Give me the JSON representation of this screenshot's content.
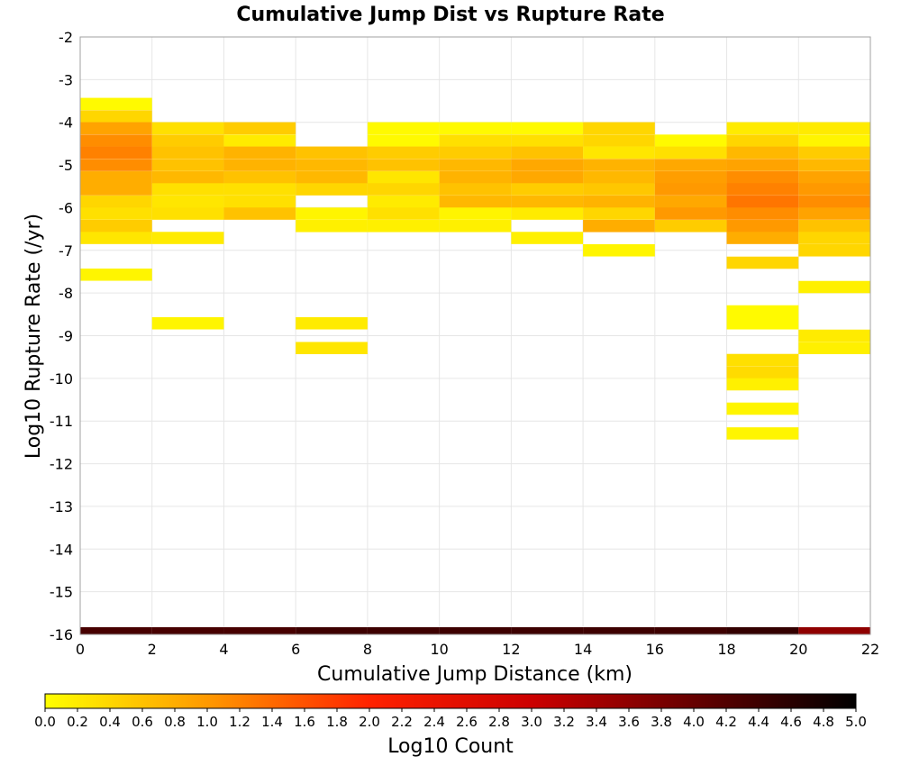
{
  "chart_data": {
    "type": "heatmap",
    "title": "Cumulative Jump Dist vs Rupture Rate",
    "xlabel": "Cumulative Jump Distance (km)",
    "ylabel": "Log10 Rupture Rate (/yr)",
    "xlim": [
      0,
      22
    ],
    "ylim": [
      -16,
      -2
    ],
    "xticks": [
      0,
      2,
      4,
      6,
      8,
      10,
      12,
      14,
      16,
      18,
      20,
      22
    ],
    "yticks": [
      -2,
      -3,
      -4,
      -5,
      -6,
      -7,
      -8,
      -9,
      -10,
      -11,
      -12,
      -13,
      -14,
      -15,
      -16
    ],
    "grid": true,
    "colorbar": {
      "label": "Log10 Count",
      "range": [
        0,
        5
      ],
      "ticks": [
        "0.0",
        "0.2",
        "0.4",
        "0.6",
        "0.8",
        "1.0",
        "1.2",
        "1.4",
        "1.6",
        "1.8",
        "2.0",
        "2.2",
        "2.4",
        "2.6",
        "2.8",
        "3.0",
        "3.2",
        "3.4",
        "3.6",
        "3.8",
        "4.0",
        "4.2",
        "4.4",
        "4.6",
        "4.8",
        "5.0"
      ],
      "colors": [
        "#ffff00",
        "#ff9900",
        "#ff2200",
        "#cc0000",
        "#660000",
        "#000000"
      ]
    },
    "x_bins": [
      [
        0,
        2
      ],
      [
        2,
        4
      ],
      [
        4,
        6
      ],
      [
        6,
        8
      ],
      [
        8,
        10
      ],
      [
        10,
        12
      ],
      [
        12,
        14
      ],
      [
        14,
        16
      ],
      [
        16,
        18
      ],
      [
        18,
        20
      ],
      [
        20,
        22
      ]
    ],
    "y_bin_width": 0.286,
    "cells": [
      [
        [
          -3.57,
          0.05
        ],
        [
          -3.86,
          0.4
        ],
        [
          -4.14,
          0.9
        ],
        [
          -4.43,
          1.1
        ],
        [
          -4.71,
          1.2
        ],
        [
          -5.0,
          1.1
        ],
        [
          -5.29,
          0.8
        ],
        [
          -5.57,
          0.8
        ],
        [
          -5.86,
          0.4
        ],
        [
          -6.14,
          0.3
        ],
        [
          -6.43,
          0.5
        ],
        [
          -6.71,
          0.25
        ],
        [
          -7.57,
          0.1
        ]
      ],
      [
        [
          -4.14,
          0.3
        ],
        [
          -4.43,
          0.5
        ],
        [
          -4.71,
          0.6
        ],
        [
          -5.0,
          0.6
        ],
        [
          -5.29,
          0.7
        ],
        [
          -5.57,
          0.3
        ],
        [
          -5.86,
          0.25
        ],
        [
          -6.14,
          0.3
        ],
        [
          -6.71,
          0.2
        ],
        [
          -8.71,
          0.1
        ]
      ],
      [
        [
          -4.14,
          0.5
        ],
        [
          -4.43,
          0.2
        ],
        [
          -4.71,
          0.75
        ],
        [
          -5.0,
          0.75
        ],
        [
          -5.29,
          0.6
        ],
        [
          -5.57,
          0.3
        ],
        [
          -5.86,
          0.3
        ],
        [
          -6.14,
          0.6
        ]
      ],
      [
        [
          -4.71,
          0.6
        ],
        [
          -5.0,
          0.7
        ],
        [
          -5.29,
          0.7
        ],
        [
          -5.57,
          0.4
        ],
        [
          -6.14,
          0.1
        ],
        [
          -6.43,
          0.15
        ],
        [
          -8.71,
          0.2
        ],
        [
          -9.29,
          0.25
        ]
      ],
      [
        [
          -4.14,
          0.05
        ],
        [
          -4.43,
          0.05
        ],
        [
          -4.71,
          0.5
        ],
        [
          -5.0,
          0.6
        ],
        [
          -5.29,
          0.25
        ],
        [
          -5.57,
          0.4
        ],
        [
          -5.86,
          0.2
        ],
        [
          -6.14,
          0.3
        ],
        [
          -6.43,
          0.15
        ]
      ],
      [
        [
          -4.14,
          0.05
        ],
        [
          -4.43,
          0.3
        ],
        [
          -4.71,
          0.5
        ],
        [
          -5.0,
          0.7
        ],
        [
          -5.29,
          0.75
        ],
        [
          -5.57,
          0.6
        ],
        [
          -5.86,
          0.7
        ],
        [
          -6.14,
          0.1
        ],
        [
          -6.43,
          0.15
        ]
      ],
      [
        [
          -4.14,
          0.05
        ],
        [
          -4.43,
          0.3
        ],
        [
          -4.71,
          0.6
        ],
        [
          -5.0,
          0.85
        ],
        [
          -5.29,
          0.85
        ],
        [
          -5.57,
          0.5
        ],
        [
          -5.86,
          0.7
        ],
        [
          -6.14,
          0.2
        ],
        [
          -6.71,
          0.15
        ]
      ],
      [
        [
          -4.14,
          0.4
        ],
        [
          -4.43,
          0.4
        ],
        [
          -4.71,
          0.25
        ],
        [
          -5.0,
          0.75
        ],
        [
          -5.29,
          0.7
        ],
        [
          -5.57,
          0.55
        ],
        [
          -5.86,
          0.75
        ],
        [
          -6.14,
          0.4
        ],
        [
          -6.43,
          0.8
        ],
        [
          -7.0,
          0.1
        ]
      ],
      [
        [
          -4.43,
          0.05
        ],
        [
          -4.71,
          0.3
        ],
        [
          -5.0,
          0.85
        ],
        [
          -5.29,
          0.95
        ],
        [
          -5.57,
          1.0
        ],
        [
          -5.86,
          0.85
        ],
        [
          -6.14,
          1.0
        ],
        [
          -6.43,
          0.5
        ]
      ],
      [
        [
          -4.14,
          0.2
        ],
        [
          -4.43,
          0.4
        ],
        [
          -4.71,
          0.7
        ],
        [
          -5.0,
          0.9
        ],
        [
          -5.29,
          1.1
        ],
        [
          -5.57,
          1.2
        ],
        [
          -5.86,
          1.3
        ],
        [
          -6.14,
          1.1
        ],
        [
          -6.43,
          1.0
        ],
        [
          -6.71,
          0.8
        ],
        [
          -7.29,
          0.4
        ],
        [
          -8.43,
          0.05
        ],
        [
          -8.71,
          0.05
        ],
        [
          -9.57,
          0.3
        ],
        [
          -9.86,
          0.35
        ],
        [
          -10.14,
          0.15
        ],
        [
          -10.71,
          0.1
        ],
        [
          -11.29,
          0.1
        ]
      ],
      [
        [
          -4.14,
          0.2
        ],
        [
          -4.43,
          0.1
        ],
        [
          -4.71,
          0.5
        ],
        [
          -5.0,
          0.7
        ],
        [
          -5.29,
          0.9
        ],
        [
          -5.57,
          1.0
        ],
        [
          -5.86,
          1.1
        ],
        [
          -6.14,
          0.9
        ],
        [
          -6.43,
          0.6
        ],
        [
          -6.71,
          0.4
        ],
        [
          -7.0,
          0.4
        ],
        [
          -7.86,
          0.15
        ],
        [
          -9.0,
          0.2
        ],
        [
          -9.29,
          0.15
        ]
      ]
    ],
    "bottom_row": {
      "y": -16.0,
      "values": [
        4.3,
        4.3,
        4.3,
        4.4,
        4.4,
        4.4,
        4.4,
        4.4,
        4.4,
        4.5,
        3.6
      ]
    }
  }
}
